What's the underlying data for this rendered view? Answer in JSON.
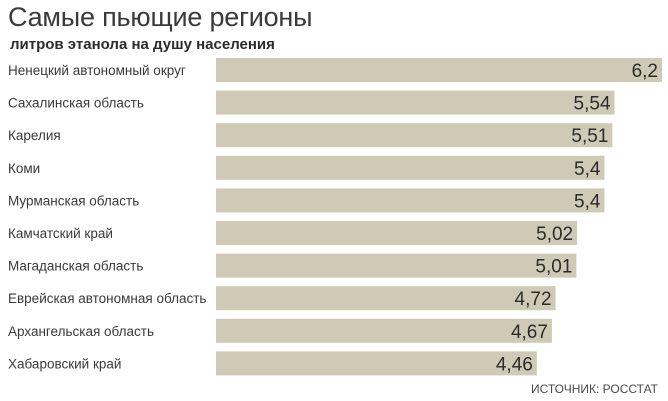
{
  "chart_data": {
    "type": "bar",
    "orientation": "horizontal",
    "title": "Самые пьющие регионы",
    "subtitle": "литров этанола на душу населения",
    "categories": [
      "Ненецкий автономный округ",
      "Сахалинская область",
      "Карелия",
      "Коми",
      "Мурманская область",
      "Камчатский край",
      "Магаданская область",
      "Еврейская автономная область",
      "Архангельская область",
      "Хабаровский край"
    ],
    "values": [
      6.2,
      5.54,
      5.51,
      5.4,
      5.4,
      5.02,
      5.01,
      4.72,
      4.67,
      4.46
    ],
    "value_labels": [
      "6,2",
      "5,54",
      "5,51",
      "5,4",
      "5,4",
      "5,02",
      "5,01",
      "4,72",
      "4,67",
      "4,46"
    ],
    "bar_color": "#cfcab6",
    "grid": false,
    "legend": "none"
  },
  "source": "ИСТОЧНИК: РОССТАТ"
}
